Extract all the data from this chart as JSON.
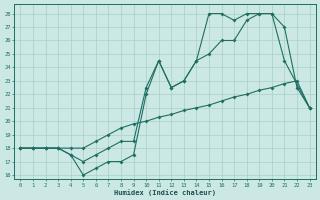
{
  "xlabel": "Humidex (Indice chaleur)",
  "bg_color": "#cce8e4",
  "line_color": "#1e6e64",
  "grid_color": "#aacfca",
  "xlim": [
    -0.5,
    23.5
  ],
  "ylim": [
    15.7,
    28.7
  ],
  "xticks": [
    0,
    1,
    2,
    3,
    4,
    5,
    6,
    7,
    8,
    9,
    10,
    11,
    12,
    13,
    14,
    15,
    16,
    17,
    18,
    19,
    20,
    21,
    22,
    23
  ],
  "yticks": [
    16,
    17,
    18,
    19,
    20,
    21,
    22,
    23,
    24,
    25,
    26,
    27,
    28
  ],
  "line1_x": [
    0,
    1,
    2,
    3,
    4,
    5,
    6,
    7,
    8,
    9,
    10,
    11,
    12,
    13,
    14,
    15,
    16,
    17,
    18,
    19,
    20,
    21,
    22,
    23
  ],
  "line1_y": [
    18,
    18,
    18,
    18,
    18,
    18,
    18.5,
    19,
    19.5,
    19.8,
    20,
    20.3,
    20.5,
    20.8,
    21,
    21.2,
    21.5,
    21.8,
    22,
    22.3,
    22.5,
    22.8,
    23,
    21
  ],
  "line2_x": [
    0,
    1,
    2,
    3,
    4,
    5,
    6,
    7,
    8,
    9,
    10,
    11,
    12,
    13,
    14,
    15,
    16,
    17,
    18,
    19,
    20,
    21,
    22,
    23
  ],
  "line2_y": [
    18,
    18,
    18,
    18,
    17.5,
    17,
    17.5,
    18,
    18.5,
    18.5,
    22.5,
    24.5,
    22.5,
    23,
    24.5,
    25,
    26,
    26,
    27.5,
    28,
    28,
    27,
    22.5,
    21
  ],
  "line3_x": [
    0,
    1,
    2,
    3,
    4,
    5,
    6,
    7,
    8,
    9,
    10,
    11,
    12,
    13,
    14,
    15,
    16,
    17,
    18,
    19,
    20,
    21,
    23
  ],
  "line3_y": [
    18,
    18,
    18,
    18,
    17.5,
    16,
    16.5,
    17,
    17,
    17.5,
    22,
    24.5,
    22.5,
    23,
    24.5,
    28,
    28,
    27.5,
    28,
    28,
    28,
    24.5,
    21
  ]
}
